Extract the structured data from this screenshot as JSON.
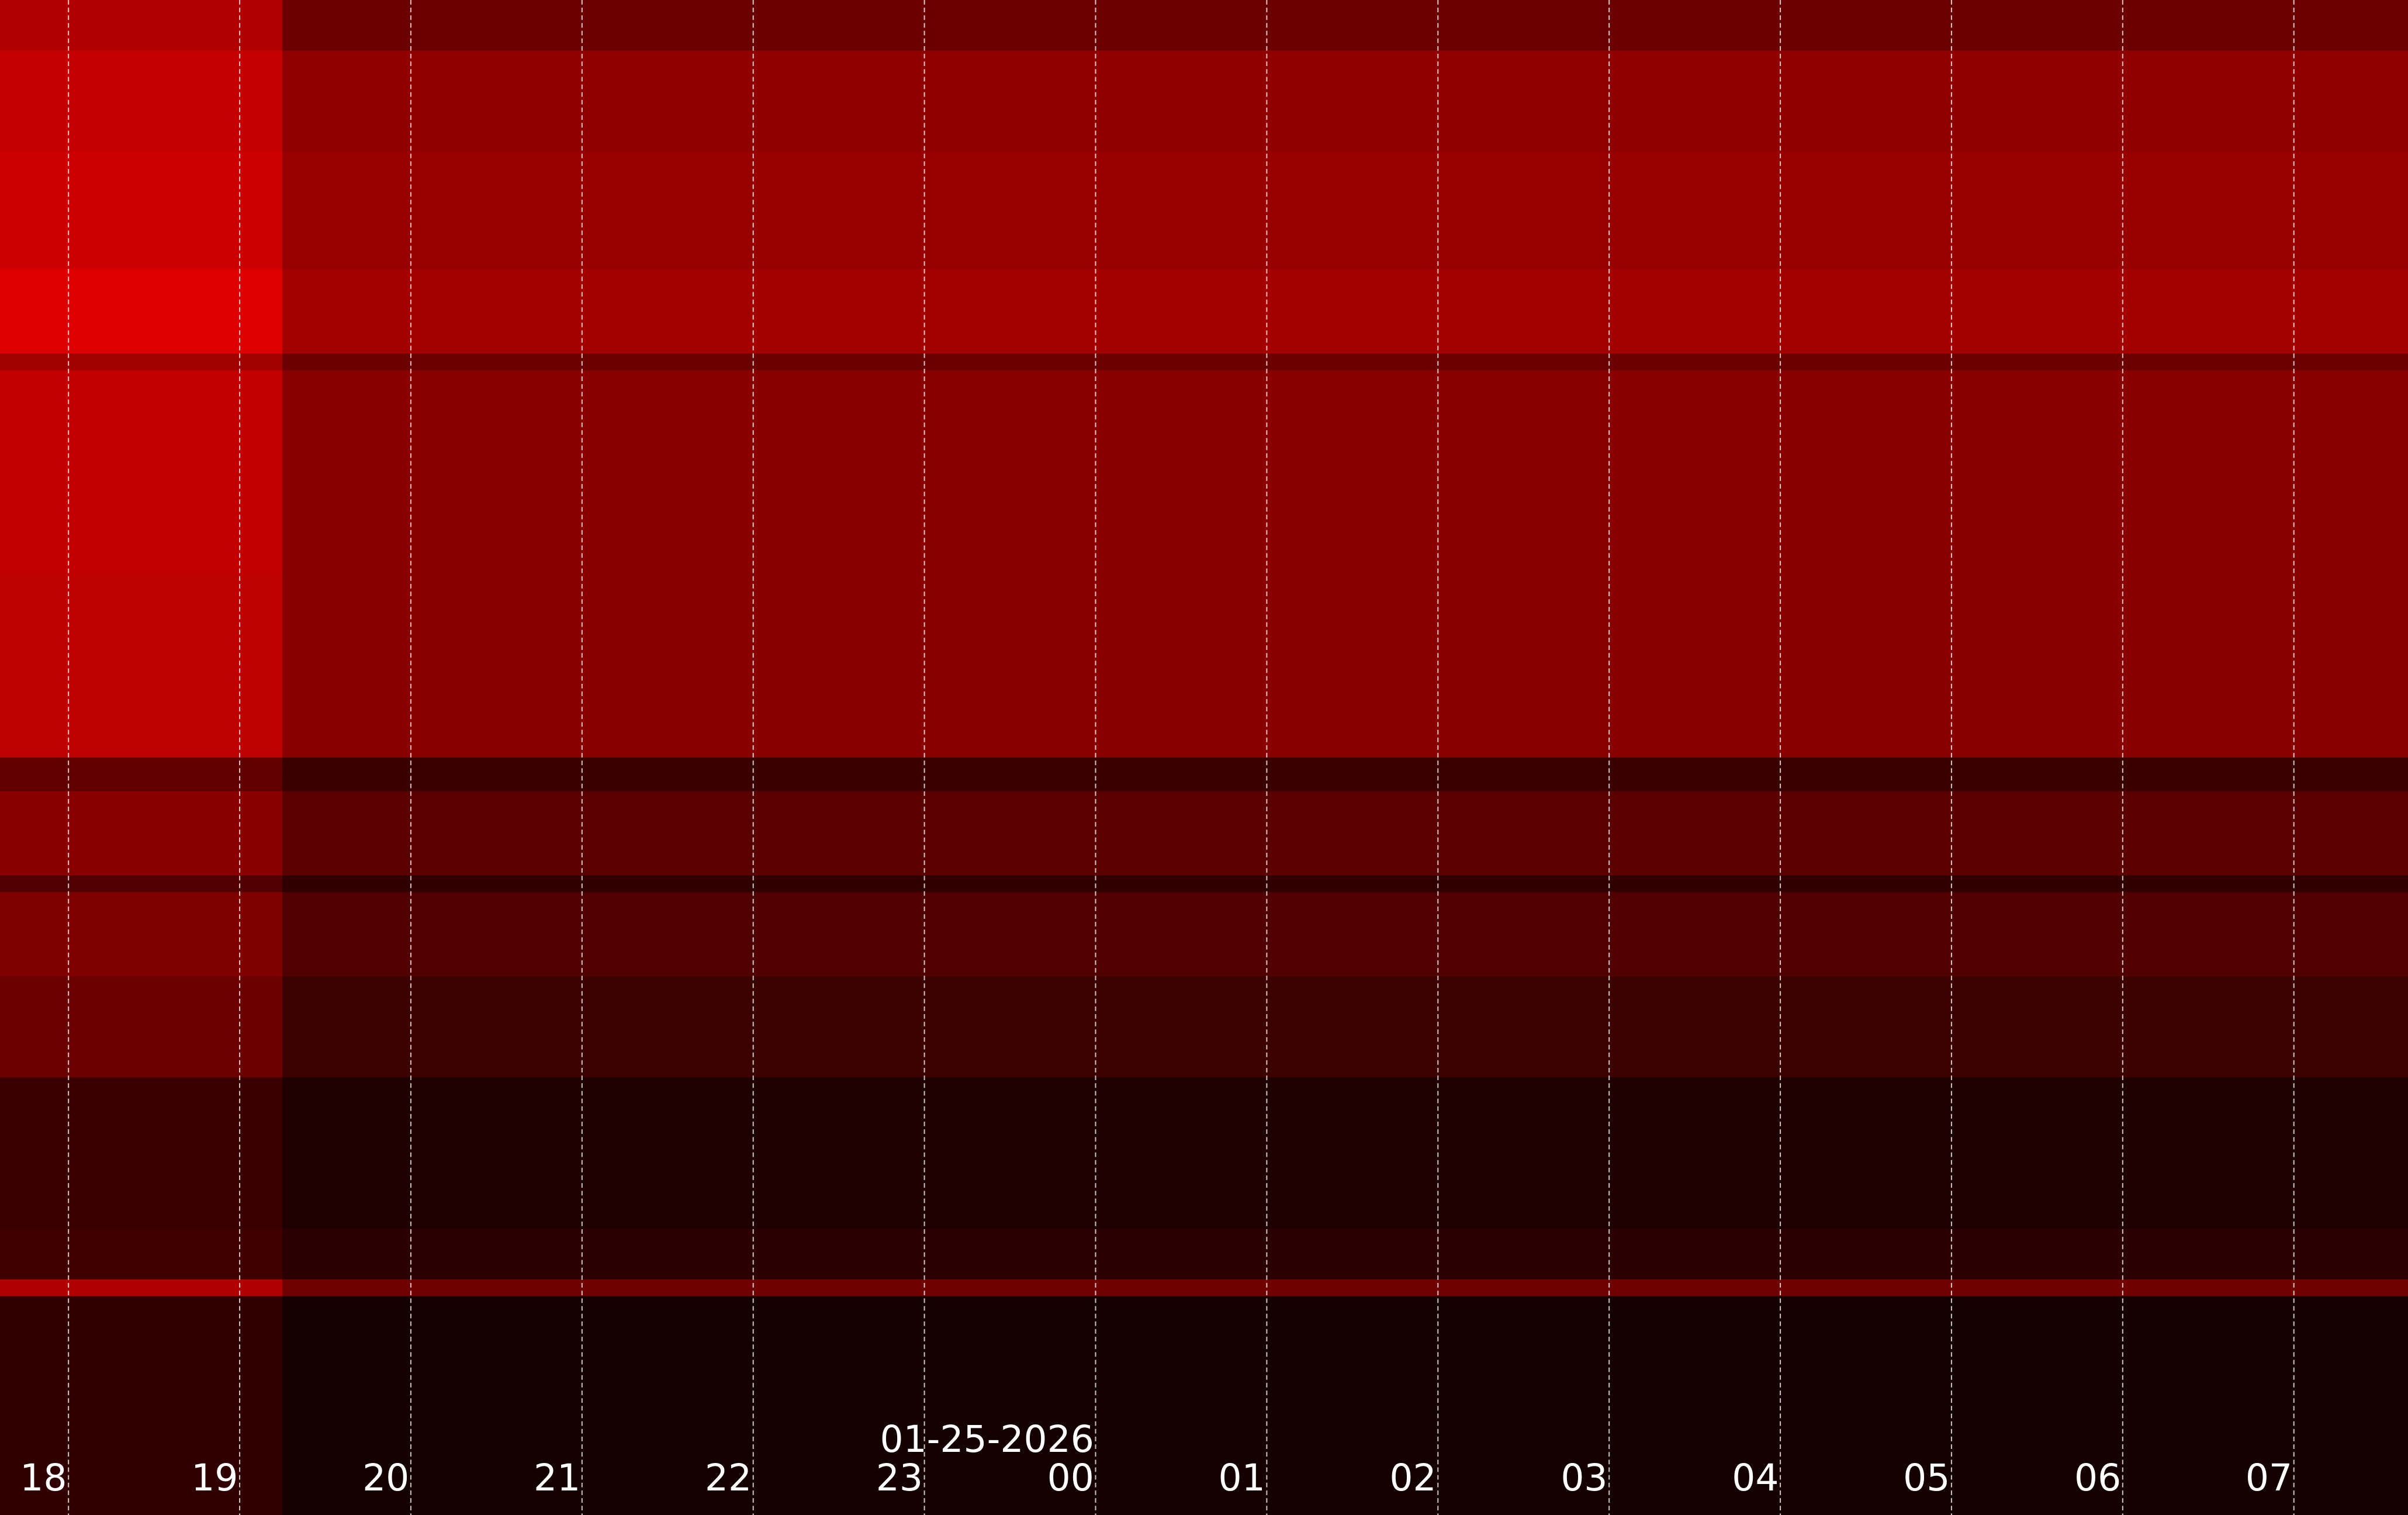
{
  "chart_data": {
    "type": "heatmap",
    "title": "",
    "xlabel": "",
    "ylabel": "",
    "xlim": [
      "17:36",
      "07:40"
    ],
    "date_label": "01-25-2026",
    "date_label_at": "00",
    "x_ticks": [
      "18",
      "19",
      "20",
      "21",
      "22",
      "23",
      "00",
      "01",
      "02",
      "03",
      "04",
      "05",
      "06",
      "07"
    ],
    "grid": "vertical dashed, hourly",
    "colormap": "black-to-red",
    "segments": [
      {
        "start": "17:36",
        "end": "19:15",
        "rows_key": "early"
      },
      {
        "start": "19:15",
        "end": "07:40",
        "rows_key": "late"
      }
    ],
    "row_intensity_order": "top-to-bottom, red channel 0-255",
    "early": [
      176,
      176,
      176,
      196,
      196,
      196,
      196,
      196,
      196,
      204,
      204,
      204,
      204,
      204,
      204,
      204,
      221,
      221,
      221,
      221,
      221,
      160,
      194,
      194,
      194,
      194,
      194,
      194,
      194,
      194,
      194,
      194,
      194,
      194,
      190,
      190,
      190,
      190,
      190,
      190,
      190,
      190,
      190,
      190,
      190,
      96,
      96,
      138,
      138,
      138,
      138,
      138,
      80,
      128,
      128,
      128,
      128,
      128,
      106,
      106,
      106,
      106,
      106,
      106,
      58,
      58,
      58,
      58,
      58,
      58,
      58,
      58,
      58,
      64,
      64,
      64,
      176,
      48,
      48,
      48,
      48,
      48,
      48,
      48,
      48,
      48,
      48,
      48,
      48,
      48
    ],
    "late": [
      106,
      106,
      106,
      144,
      144,
      144,
      144,
      144,
      144,
      152,
      152,
      152,
      152,
      152,
      152,
      152,
      165,
      165,
      165,
      165,
      165,
      106,
      138,
      138,
      138,
      138,
      138,
      138,
      138,
      138,
      138,
      138,
      138,
      138,
      136,
      136,
      136,
      136,
      136,
      136,
      136,
      136,
      136,
      136,
      136,
      58,
      58,
      90,
      90,
      90,
      90,
      90,
      48,
      80,
      80,
      80,
      80,
      80,
      61,
      61,
      61,
      61,
      61,
      61,
      30,
      30,
      30,
      30,
      30,
      30,
      30,
      30,
      30,
      42,
      42,
      42,
      112,
      21,
      21,
      21,
      21,
      21,
      21,
      21,
      21,
      21,
      21,
      21,
      21,
      21
    ],
    "colors": {
      "grid": "#ffffff",
      "text": "#ffffff"
    }
  }
}
